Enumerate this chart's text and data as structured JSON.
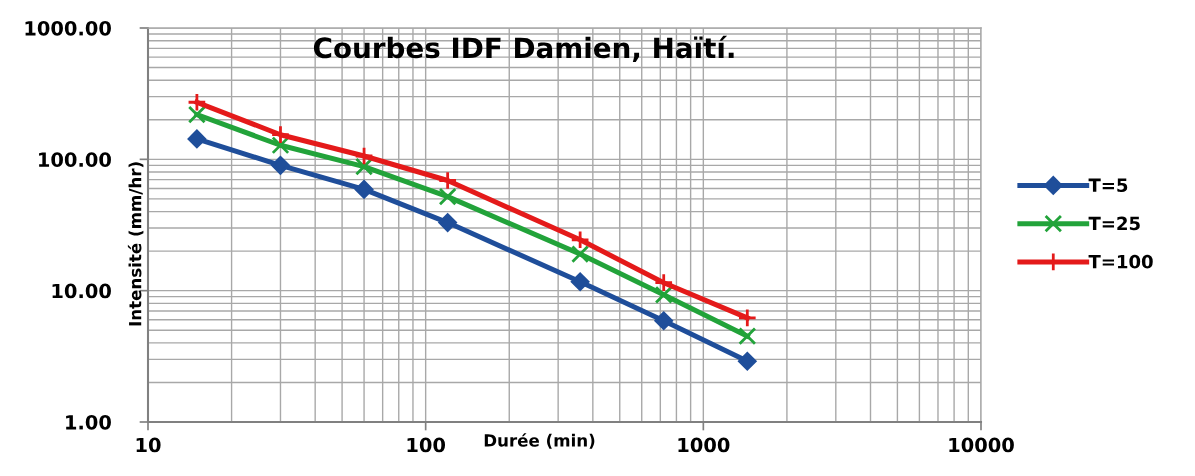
{
  "chart_data": {
    "type": "line",
    "title": "Courbes IDF Damien, Haïtí.",
    "xlabel": "Durée (min)",
    "ylabel": "Intensité (mm/hr)",
    "x": [
      15,
      30,
      60,
      120,
      360,
      720,
      1440
    ],
    "series": [
      {
        "name": "T=5",
        "color": "#1f4e9a",
        "marker": "diamond",
        "values": [
          143,
          90,
          59,
          33,
          11.7,
          5.9,
          2.9
        ]
      },
      {
        "name": "T=25",
        "color": "#22a33a",
        "marker": "cross",
        "values": [
          219,
          128,
          88,
          52,
          19,
          9.3,
          4.5
        ]
      },
      {
        "name": "T=100",
        "color": "#e41a1a",
        "marker": "plus",
        "values": [
          272,
          154,
          106,
          69,
          24.4,
          11.5,
          6.2
        ]
      }
    ],
    "log": "xy",
    "xlim": [
      10,
      10000
    ],
    "ylim": [
      1,
      1000
    ],
    "xticks": [
      10,
      100,
      1000,
      10000
    ],
    "yticks": [
      {
        "value": 1,
        "label": "1.00"
      },
      {
        "value": 10,
        "label": "10.00"
      },
      {
        "value": 100,
        "label": "100.00"
      },
      {
        "value": 1000,
        "label": "1000.00"
      }
    ],
    "grid": true,
    "legend": "right",
    "line_style": "solid"
  }
}
